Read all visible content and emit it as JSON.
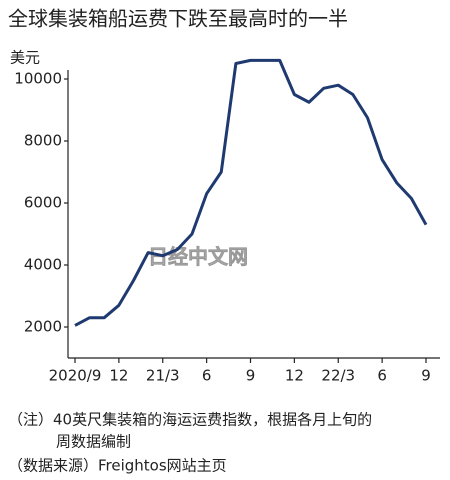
{
  "chart_data": {
    "type": "line",
    "title": "全球集装箱船运费下跌至最高时的一半",
    "y_unit": "美元",
    "watermark": "日经中文网",
    "categories": [
      "2020/9",
      null,
      null,
      "12",
      null,
      null,
      "21/3",
      null,
      null,
      "6",
      null,
      null,
      "9",
      null,
      null,
      "12",
      null,
      null,
      "22/3",
      null,
      null,
      "6",
      null,
      null,
      "9"
    ],
    "values": [
      2050,
      2300,
      2300,
      2700,
      3500,
      4400,
      4300,
      4500,
      5000,
      6300,
      7000,
      10500,
      10600,
      10600,
      10600,
      9500,
      9250,
      9700,
      9800,
      9500,
      8750,
      7400,
      6650,
      6150,
      5300
    ],
    "color": "#1f3a70",
    "ylim": [
      1000,
      11000
    ],
    "yticks": [
      2000,
      4000,
      6000,
      8000,
      10000
    ],
    "grid": false,
    "notes": [
      "（注）40英尺集装箱的海运运费指数，根据各月上旬的",
      "周数据编制",
      "（数据来源）Freightos网站主页"
    ]
  }
}
